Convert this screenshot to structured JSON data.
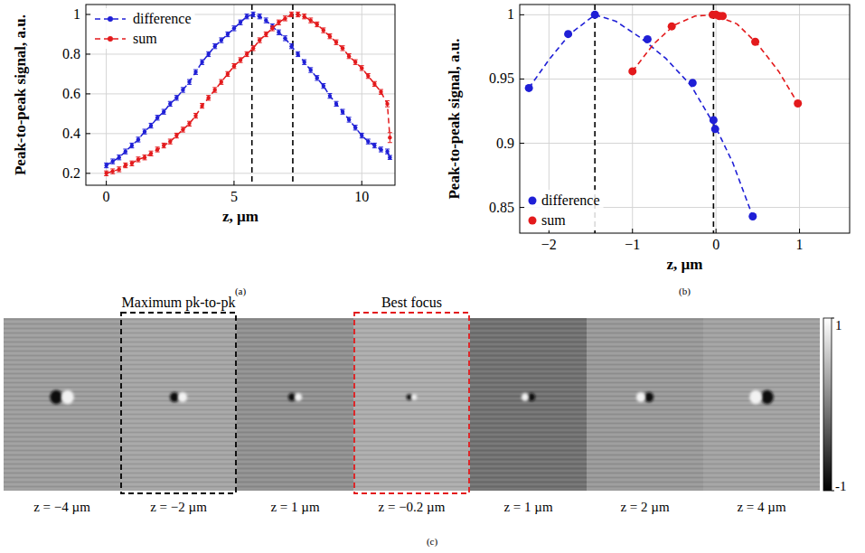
{
  "chart_data": [
    {
      "type": "line",
      "x_label": "z, µm",
      "y_label": "Peak-to-peak signal, a.u.",
      "x": [
        0,
        0.25,
        0.5,
        0.75,
        1,
        1.25,
        1.5,
        1.75,
        2,
        2.25,
        2.5,
        2.75,
        3,
        3.25,
        3.5,
        3.75,
        4,
        4.25,
        4.5,
        4.75,
        5,
        5.25,
        5.5,
        5.75,
        6,
        6.25,
        6.5,
        6.75,
        7,
        7.25,
        7.5,
        7.75,
        8,
        8.25,
        8.5,
        8.75,
        9,
        9.25,
        9.5,
        9.75,
        10,
        10.25,
        10.5,
        10.75,
        11,
        11.1
      ],
      "series": [
        {
          "name": "difference",
          "color": "#1f1fd6",
          "marker": "circle",
          "line_style": "dashed",
          "values": [
            0.24,
            0.26,
            0.28,
            0.31,
            0.34,
            0.37,
            0.41,
            0.44,
            0.48,
            0.51,
            0.55,
            0.58,
            0.62,
            0.66,
            0.71,
            0.76,
            0.8,
            0.84,
            0.87,
            0.9,
            0.93,
            0.96,
            0.99,
            1.0,
            0.99,
            0.97,
            0.94,
            0.91,
            0.88,
            0.84,
            0.8,
            0.76,
            0.72,
            0.68,
            0.64,
            0.59,
            0.55,
            0.51,
            0.47,
            0.43,
            0.39,
            0.36,
            0.34,
            0.32,
            0.31,
            0.28
          ],
          "errors": [
            0.012,
            0.012,
            0.012,
            0.012,
            0.012,
            0.012,
            0.012,
            0.012,
            0.012,
            0.012,
            0.012,
            0.012,
            0.012,
            0.012,
            0.012,
            0.012,
            0.012,
            0.012,
            0.012,
            0.012,
            0.012,
            0.012,
            0.012,
            0.012,
            0.012,
            0.012,
            0.012,
            0.012,
            0.012,
            0.012,
            0.012,
            0.012,
            0.012,
            0.012,
            0.012,
            0.012,
            0.012,
            0.012,
            0.012,
            0.012,
            0.012,
            0.012,
            0.012,
            0.012,
            0.012,
            0.01
          ]
        },
        {
          "name": "sum",
          "color": "#e31a1c",
          "marker": "circle",
          "line_style": "dashed",
          "values": [
            0.2,
            0.21,
            0.22,
            0.24,
            0.25,
            0.27,
            0.28,
            0.3,
            0.32,
            0.34,
            0.36,
            0.39,
            0.42,
            0.45,
            0.49,
            0.54,
            0.58,
            0.62,
            0.66,
            0.7,
            0.74,
            0.77,
            0.8,
            0.83,
            0.87,
            0.9,
            0.93,
            0.96,
            0.98,
            1.0,
            1.0,
            0.99,
            0.97,
            0.95,
            0.92,
            0.89,
            0.86,
            0.83,
            0.79,
            0.76,
            0.73,
            0.69,
            0.65,
            0.61,
            0.55,
            0.38
          ],
          "errors": [
            0.012,
            0.012,
            0.012,
            0.012,
            0.012,
            0.012,
            0.012,
            0.012,
            0.012,
            0.012,
            0.012,
            0.012,
            0.012,
            0.012,
            0.012,
            0.012,
            0.012,
            0.012,
            0.012,
            0.012,
            0.012,
            0.012,
            0.012,
            0.012,
            0.012,
            0.012,
            0.012,
            0.012,
            0.012,
            0.012,
            0.012,
            0.012,
            0.012,
            0.012,
            0.012,
            0.012,
            0.012,
            0.012,
            0.012,
            0.012,
            0.012,
            0.012,
            0.012,
            0.012,
            0.015,
            0.025
          ]
        }
      ],
      "xlim": [
        -0.8,
        11.3
      ],
      "ylim": [
        0.14,
        1.05
      ],
      "xticks": [
        0,
        5,
        10
      ],
      "yticks": [
        0.2,
        0.4,
        0.6,
        0.8,
        1
      ],
      "vlines": [
        5.7,
        7.3
      ],
      "grid": true,
      "legend": "upper left"
    },
    {
      "type": "scatter",
      "x_label": "z, µm",
      "y_label": "Peak-to-peak signal, a.u.",
      "series": [
        {
          "name": "difference",
          "color": "#1f1fd6",
          "marker": "circle",
          "line_style": "dashed",
          "x": [
            -2.24,
            -1.77,
            -1.45,
            -0.82,
            -0.28,
            -0.03,
            -0.01,
            0.44
          ],
          "values": [
            0.943,
            0.985,
            1.0,
            0.981,
            0.947,
            0.918,
            0.911,
            0.843
          ],
          "fit": {
            "x": [
              -2.24,
              -2,
              -1.75,
              -1.45,
              -1.2,
              -0.9,
              -0.6,
              -0.3,
              0,
              0.2,
              0.44
            ],
            "values": [
              0.943,
              0.965,
              0.985,
              1.0,
              0.995,
              0.982,
              0.966,
              0.945,
              0.912,
              0.885,
              0.843
            ]
          }
        },
        {
          "name": "sum",
          "color": "#e31a1c",
          "marker": "circle",
          "line_style": "dashed",
          "x": [
            -1.0,
            -0.53,
            -0.04,
            0.0,
            0.04,
            0.08,
            0.47,
            0.98
          ],
          "values": [
            0.956,
            0.991,
            1.0,
            1.0,
            0.999,
            0.999,
            0.979,
            0.931
          ],
          "fit": {
            "x": [
              -1,
              -0.75,
              -0.5,
              -0.25,
              -0.04,
              0.25,
              0.5,
              0.75,
              0.98
            ],
            "values": [
              0.956,
              0.977,
              0.992,
              0.999,
              1.0,
              0.993,
              0.977,
              0.956,
              0.931
            ]
          }
        }
      ],
      "xlim": [
        -2.35,
        1.6
      ],
      "ylim": [
        0.83,
        1.008
      ],
      "xticks": [
        {
          "value": -2,
          "label": "−2"
        },
        {
          "value": -1,
          "label": "−1"
        },
        0,
        1
      ],
      "yticks": [
        0.85,
        0.9,
        0.95,
        1
      ],
      "vlines": [
        -1.45,
        -0.03
      ],
      "grid": true,
      "legend": "lower left"
    }
  ],
  "panel_labels": [
    "(a)",
    "(b)",
    "(c)"
  ],
  "panel_c": {
    "images": [
      {
        "label": "z = −4 µm"
      },
      {
        "label": "z = −2 µm",
        "box": "Maximum pk-to-pk",
        "box_color": "#000000"
      },
      {
        "label": "z = 1 µm"
      },
      {
        "label": "z = −0.2 µm",
        "box": "Best focus",
        "box_color": "#e31a1c"
      },
      {
        "label": "z = 1 µm"
      },
      {
        "label": "z = 2 µm"
      },
      {
        "label": "z = 4 µm"
      }
    ],
    "colorbar": {
      "range": [
        -1,
        1
      ],
      "ticks": [
        1,
        -1
      ]
    }
  }
}
